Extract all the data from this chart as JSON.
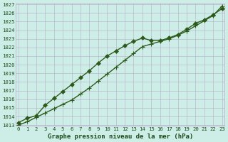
{
  "xlabel": "Graphe pression niveau de la mer (hPa)",
  "x_ticks": [
    0,
    1,
    2,
    3,
    4,
    5,
    6,
    7,
    8,
    9,
    10,
    11,
    12,
    13,
    14,
    15,
    16,
    17,
    18,
    19,
    20,
    21,
    22,
    23
  ],
  "y_ticks": [
    1013,
    1014,
    1015,
    1016,
    1017,
    1018,
    1019,
    1020,
    1021,
    1022,
    1023,
    1024,
    1025,
    1026,
    1027
  ],
  "xlim": [
    0,
    23
  ],
  "ylim": [
    1013,
    1027
  ],
  "line1_x": [
    0,
    1,
    2,
    3,
    4,
    5,
    6,
    7,
    8,
    9,
    10,
    11,
    12,
    13,
    14,
    15,
    16,
    17,
    18,
    19,
    20,
    21,
    22,
    23
  ],
  "line1_y": [
    1013.3,
    1013.8,
    1014.1,
    1015.3,
    1016.1,
    1016.9,
    1017.7,
    1018.5,
    1019.3,
    1020.2,
    1021.0,
    1021.6,
    1022.2,
    1022.7,
    1023.1,
    1022.8,
    1022.8,
    1023.1,
    1023.5,
    1024.1,
    1024.8,
    1025.2,
    1025.8,
    1026.5
  ],
  "line2_x": [
    0,
    1,
    2,
    3,
    4,
    5,
    6,
    7,
    8,
    9,
    10,
    11,
    12,
    13,
    14,
    15,
    16,
    17,
    18,
    19,
    20,
    21,
    22,
    23
  ],
  "line2_y": [
    1013.0,
    1013.4,
    1013.9,
    1014.4,
    1014.9,
    1015.4,
    1015.9,
    1016.6,
    1017.3,
    1018.1,
    1018.9,
    1019.7,
    1020.5,
    1021.3,
    1022.1,
    1022.4,
    1022.7,
    1023.0,
    1023.4,
    1023.9,
    1024.5,
    1025.1,
    1025.7,
    1026.8
  ],
  "bg_color": "#cceee6",
  "grid_color": "#b8a8c8",
  "line_color": "#2d5a1b",
  "marker1": "D",
  "marker2": "+",
  "marker1_size": 3.0,
  "marker2_size": 4.5,
  "line_width": 1.0,
  "xlabel_fontsize": 6.5,
  "tick_fontsize": 5.2,
  "tick_color": "#1a4a1a"
}
